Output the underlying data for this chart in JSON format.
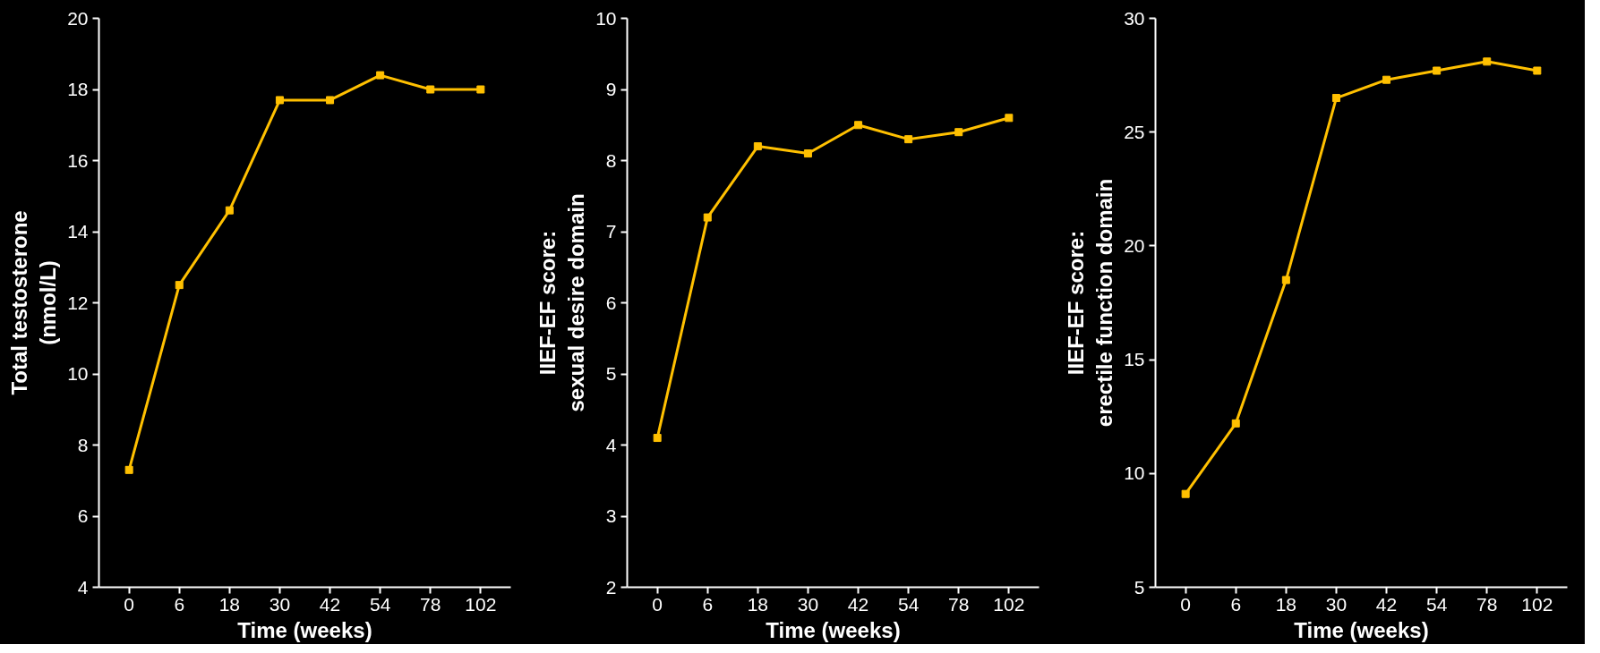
{
  "chart_data": [
    {
      "type": "line",
      "categories": [
        "0",
        "6",
        "18",
        "30",
        "42",
        "54",
        "78",
        "102"
      ],
      "values": [
        7.3,
        12.5,
        14.6,
        17.7,
        17.7,
        18.4,
        18.0,
        18.0
      ],
      "color": "#ffc000",
      "ylim": [
        4,
        20
      ],
      "yticks": [
        4,
        6,
        8,
        10,
        12,
        14,
        16,
        18,
        20
      ],
      "ylabel": "Total testosterone\n(nmol/L)",
      "xlabel": "Time (weeks)",
      "marker": "square",
      "grid": false
    },
    {
      "type": "line",
      "categories": [
        "0",
        "6",
        "18",
        "30",
        "42",
        "54",
        "78",
        "102"
      ],
      "values": [
        4.1,
        7.2,
        8.2,
        8.1,
        8.5,
        8.3,
        8.4,
        8.6
      ],
      "color": "#ffc000",
      "ylim": [
        2,
        10
      ],
      "yticks": [
        2,
        3,
        4,
        5,
        6,
        7,
        8,
        9,
        10
      ],
      "ylabel": "IIEF-EF score:\nsexual desire domain",
      "xlabel": "Time (weeks)",
      "marker": "square",
      "grid": false
    },
    {
      "type": "line",
      "categories": [
        "0",
        "6",
        "18",
        "30",
        "42",
        "54",
        "78",
        "102"
      ],
      "values": [
        9.1,
        12.2,
        18.5,
        26.5,
        27.3,
        27.7,
        28.1,
        27.7
      ],
      "color": "#ffc000",
      "ylim": [
        5,
        30
      ],
      "yticks": [
        5,
        10,
        15,
        20,
        25,
        30
      ],
      "ylabel": "IIEF-EF score:\nerectile function domain",
      "xlabel": "Time (weeks)",
      "marker": "square",
      "grid": false
    }
  ]
}
